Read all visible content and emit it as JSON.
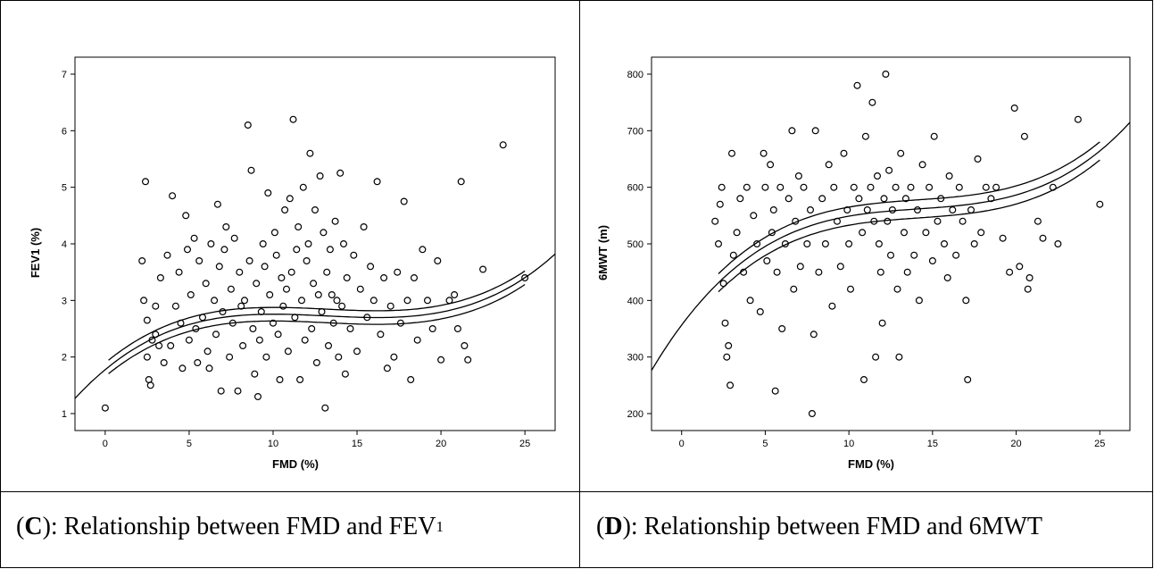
{
  "panels": [
    {
      "chart_data": {
        "type": "scatter",
        "xlabel": "FMD (%)",
        "ylabel": "FEV1 (%)",
        "xlim": [
          -1.8,
          26.8
        ],
        "ylim": [
          0.7,
          7.3
        ],
        "xticks": [
          0,
          5,
          10,
          15,
          20,
          25
        ],
        "yticks": [
          1,
          2,
          3,
          4,
          5,
          6,
          7
        ],
        "grid": false,
        "fit": {
          "kind": "cubic",
          "coef": [
            1.7764,
            0.246,
            -0.01984,
            0.000504
          ],
          "ci_halfwidth": 0.12,
          "ci_range": [
            0.2,
            25
          ]
        },
        "points": [
          [
            0,
            1.1
          ],
          [
            2.2,
            3.7
          ],
          [
            2.3,
            3.0
          ],
          [
            2.4,
            5.1
          ],
          [
            2.5,
            2.65
          ],
          [
            2.5,
            2.0
          ],
          [
            2.6,
            1.6
          ],
          [
            2.7,
            1.5
          ],
          [
            2.8,
            2.3
          ],
          [
            3.0,
            2.9
          ],
          [
            3.0,
            2.4
          ],
          [
            3.2,
            2.2
          ],
          [
            3.3,
            3.4
          ],
          [
            3.5,
            1.9
          ],
          [
            3.7,
            3.8
          ],
          [
            3.9,
            2.2
          ],
          [
            4.0,
            4.85
          ],
          [
            4.2,
            2.9
          ],
          [
            4.4,
            3.5
          ],
          [
            4.5,
            2.6
          ],
          [
            4.6,
            1.8
          ],
          [
            4.8,
            4.5
          ],
          [
            4.9,
            3.9
          ],
          [
            5.0,
            2.3
          ],
          [
            5.1,
            3.1
          ],
          [
            5.3,
            4.1
          ],
          [
            5.4,
            2.5
          ],
          [
            5.5,
            1.9
          ],
          [
            5.6,
            3.7
          ],
          [
            5.8,
            2.7
          ],
          [
            6.0,
            3.3
          ],
          [
            6.1,
            2.1
          ],
          [
            6.2,
            1.8
          ],
          [
            6.3,
            4.0
          ],
          [
            6.5,
            3.0
          ],
          [
            6.6,
            2.4
          ],
          [
            6.7,
            4.7
          ],
          [
            6.8,
            3.6
          ],
          [
            6.9,
            1.4
          ],
          [
            7.0,
            2.8
          ],
          [
            7.1,
            3.9
          ],
          [
            7.2,
            4.3
          ],
          [
            7.4,
            2.0
          ],
          [
            7.5,
            3.2
          ],
          [
            7.6,
            2.6
          ],
          [
            7.7,
            4.1
          ],
          [
            7.9,
            1.4
          ],
          [
            8.0,
            3.5
          ],
          [
            8.1,
            2.9
          ],
          [
            8.2,
            2.2
          ],
          [
            8.3,
            3.0
          ],
          [
            8.5,
            6.1
          ],
          [
            8.6,
            3.7
          ],
          [
            8.7,
            5.3
          ],
          [
            8.8,
            2.5
          ],
          [
            8.9,
            1.7
          ],
          [
            9.0,
            3.3
          ],
          [
            9.1,
            1.3
          ],
          [
            9.2,
            2.3
          ],
          [
            9.3,
            2.8
          ],
          [
            9.4,
            4.0
          ],
          [
            9.5,
            3.6
          ],
          [
            9.6,
            2.0
          ],
          [
            9.7,
            4.9
          ],
          [
            9.8,
            3.1
          ],
          [
            10.0,
            2.6
          ],
          [
            10.1,
            4.2
          ],
          [
            10.2,
            3.8
          ],
          [
            10.3,
            2.4
          ],
          [
            10.4,
            1.6
          ],
          [
            10.5,
            3.4
          ],
          [
            10.6,
            2.9
          ],
          [
            10.7,
            4.6
          ],
          [
            10.8,
            3.2
          ],
          [
            10.9,
            2.1
          ],
          [
            11.0,
            4.8
          ],
          [
            11.1,
            3.5
          ],
          [
            11.2,
            6.2
          ],
          [
            11.3,
            2.7
          ],
          [
            11.4,
            3.9
          ],
          [
            11.5,
            4.3
          ],
          [
            11.6,
            1.6
          ],
          [
            11.7,
            3.0
          ],
          [
            11.8,
            5.0
          ],
          [
            11.9,
            2.3
          ],
          [
            12.0,
            3.7
          ],
          [
            12.1,
            4.0
          ],
          [
            12.2,
            5.6
          ],
          [
            12.3,
            2.5
          ],
          [
            12.4,
            3.3
          ],
          [
            12.5,
            4.6
          ],
          [
            12.6,
            1.9
          ],
          [
            12.7,
            3.1
          ],
          [
            12.8,
            5.2
          ],
          [
            12.9,
            2.8
          ],
          [
            13.0,
            4.2
          ],
          [
            13.1,
            1.1
          ],
          [
            13.2,
            3.5
          ],
          [
            13.3,
            2.2
          ],
          [
            13.4,
            3.9
          ],
          [
            13.5,
            3.1
          ],
          [
            13.6,
            2.6
          ],
          [
            13.7,
            4.4
          ],
          [
            13.8,
            3.0
          ],
          [
            13.9,
            2.0
          ],
          [
            14.0,
            5.25
          ],
          [
            14.1,
            2.9
          ],
          [
            14.2,
            4.0
          ],
          [
            14.3,
            1.7
          ],
          [
            14.4,
            3.4
          ],
          [
            14.6,
            2.5
          ],
          [
            14.8,
            3.8
          ],
          [
            15.0,
            2.1
          ],
          [
            15.2,
            3.2
          ],
          [
            15.4,
            4.3
          ],
          [
            15.6,
            2.7
          ],
          [
            15.8,
            3.6
          ],
          [
            16.0,
            3.0
          ],
          [
            16.2,
            5.1
          ],
          [
            16.4,
            2.4
          ],
          [
            16.6,
            3.4
          ],
          [
            16.8,
            1.8
          ],
          [
            17.0,
            2.9
          ],
          [
            17.2,
            2.0
          ],
          [
            17.4,
            3.5
          ],
          [
            17.6,
            2.6
          ],
          [
            17.8,
            4.75
          ],
          [
            18.0,
            3.0
          ],
          [
            18.2,
            1.6
          ],
          [
            18.4,
            3.4
          ],
          [
            18.6,
            2.3
          ],
          [
            18.9,
            3.9
          ],
          [
            19.2,
            3.0
          ],
          [
            19.5,
            2.5
          ],
          [
            19.8,
            3.7
          ],
          [
            20.0,
            1.95
          ],
          [
            20.5,
            3.0
          ],
          [
            20.8,
            3.1
          ],
          [
            21.0,
            2.5
          ],
          [
            21.2,
            5.1
          ],
          [
            21.4,
            2.2
          ],
          [
            21.6,
            1.95
          ],
          [
            22.5,
            3.55
          ],
          [
            23.7,
            5.75
          ],
          [
            25,
            3.4
          ]
        ]
      },
      "caption": {
        "label": "C",
        "text_pre": "): Relationship between FMD and FEV",
        "sub": "1"
      }
    },
    {
      "chart_data": {
        "type": "scatter",
        "xlabel": "FMD (%)",
        "ylabel": "6MWT (m)",
        "xlim": [
          -1.8,
          26.8
        ],
        "ylim": [
          170,
          830
        ],
        "xticks": [
          0,
          5,
          10,
          15,
          20,
          25
        ],
        "yticks": [
          200,
          300,
          400,
          500,
          600,
          700,
          800
        ],
        "grid": false,
        "fit": {
          "kind": "cubic",
          "coef": [
            356.4,
            39.5,
            -2.65,
            0.0625
          ],
          "ci_halfwidth": 16,
          "ci_range": [
            2.2,
            25
          ]
        },
        "points": [
          [
            2.0,
            540
          ],
          [
            2.2,
            500
          ],
          [
            2.3,
            570
          ],
          [
            2.4,
            600
          ],
          [
            2.5,
            430
          ],
          [
            2.6,
            360
          ],
          [
            2.7,
            300
          ],
          [
            2.8,
            320
          ],
          [
            2.9,
            250
          ],
          [
            3.0,
            660
          ],
          [
            3.1,
            480
          ],
          [
            3.3,
            520
          ],
          [
            3.5,
            580
          ],
          [
            3.7,
            450
          ],
          [
            3.9,
            600
          ],
          [
            4.1,
            400
          ],
          [
            4.3,
            550
          ],
          [
            4.5,
            500
          ],
          [
            4.7,
            380
          ],
          [
            4.9,
            660
          ],
          [
            5.0,
            600
          ],
          [
            5.1,
            470
          ],
          [
            5.3,
            640
          ],
          [
            5.4,
            520
          ],
          [
            5.5,
            560
          ],
          [
            5.6,
            240
          ],
          [
            5.7,
            450
          ],
          [
            5.9,
            600
          ],
          [
            6.0,
            350
          ],
          [
            6.2,
            500
          ],
          [
            6.4,
            580
          ],
          [
            6.6,
            700
          ],
          [
            6.7,
            420
          ],
          [
            6.8,
            540
          ],
          [
            7.0,
            620
          ],
          [
            7.1,
            460
          ],
          [
            7.3,
            600
          ],
          [
            7.5,
            500
          ],
          [
            7.7,
            560
          ],
          [
            7.8,
            200
          ],
          [
            7.9,
            340
          ],
          [
            8.0,
            700
          ],
          [
            8.2,
            450
          ],
          [
            8.4,
            580
          ],
          [
            8.6,
            500
          ],
          [
            8.8,
            640
          ],
          [
            9.0,
            390
          ],
          [
            9.1,
            600
          ],
          [
            9.3,
            540
          ],
          [
            9.5,
            460
          ],
          [
            9.7,
            660
          ],
          [
            9.9,
            560
          ],
          [
            10.0,
            500
          ],
          [
            10.1,
            420
          ],
          [
            10.3,
            600
          ],
          [
            10.5,
            780
          ],
          [
            10.6,
            580
          ],
          [
            10.8,
            520
          ],
          [
            10.9,
            260
          ],
          [
            11.0,
            690
          ],
          [
            11.1,
            560
          ],
          [
            11.3,
            600
          ],
          [
            11.4,
            750
          ],
          [
            11.5,
            540
          ],
          [
            11.6,
            300
          ],
          [
            11.7,
            620
          ],
          [
            11.8,
            500
          ],
          [
            11.9,
            450
          ],
          [
            12.0,
            360
          ],
          [
            12.1,
            580
          ],
          [
            12.2,
            800
          ],
          [
            12.3,
            540
          ],
          [
            12.4,
            630
          ],
          [
            12.5,
            480
          ],
          [
            12.6,
            560
          ],
          [
            12.8,
            600
          ],
          [
            12.9,
            420
          ],
          [
            13.0,
            300
          ],
          [
            13.1,
            660
          ],
          [
            13.3,
            520
          ],
          [
            13.4,
            580
          ],
          [
            13.5,
            450
          ],
          [
            13.7,
            600
          ],
          [
            13.9,
            480
          ],
          [
            14.1,
            560
          ],
          [
            14.2,
            400
          ],
          [
            14.4,
            640
          ],
          [
            14.6,
            520
          ],
          [
            14.8,
            600
          ],
          [
            15.0,
            470
          ],
          [
            15.1,
            690
          ],
          [
            15.3,
            540
          ],
          [
            15.5,
            580
          ],
          [
            15.7,
            500
          ],
          [
            15.9,
            440
          ],
          [
            16.0,
            620
          ],
          [
            16.2,
            560
          ],
          [
            16.4,
            480
          ],
          [
            16.6,
            600
          ],
          [
            16.8,
            540
          ],
          [
            17.0,
            400
          ],
          [
            17.1,
            260
          ],
          [
            17.3,
            560
          ],
          [
            17.5,
            500
          ],
          [
            17.7,
            650
          ],
          [
            17.9,
            520
          ],
          [
            18.2,
            600
          ],
          [
            18.5,
            580
          ],
          [
            18.8,
            600
          ],
          [
            19.2,
            510
          ],
          [
            19.6,
            450
          ],
          [
            19.9,
            740
          ],
          [
            20.2,
            460
          ],
          [
            20.5,
            690
          ],
          [
            20.7,
            420
          ],
          [
            20.8,
            440
          ],
          [
            21.3,
            540
          ],
          [
            21.6,
            510
          ],
          [
            22.2,
            600
          ],
          [
            22.5,
            500
          ],
          [
            23.7,
            720
          ],
          [
            25,
            570
          ]
        ]
      },
      "caption": {
        "label": "D",
        "text_pre": "): Relationship between FMD and 6MWT",
        "sub": ""
      }
    }
  ]
}
